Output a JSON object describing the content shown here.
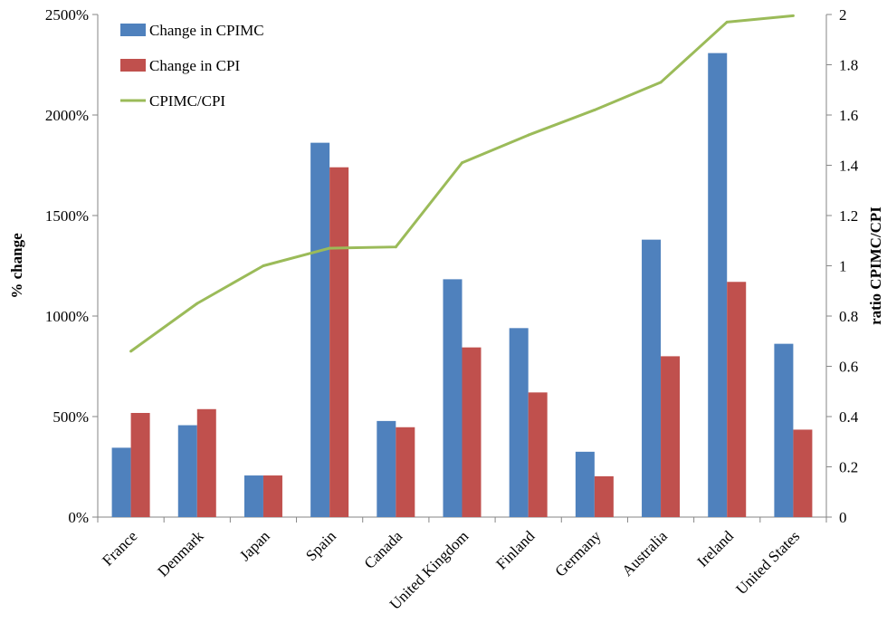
{
  "chart_data": {
    "type": "bar",
    "categories": [
      "France",
      "Denmark",
      "Japan",
      "Spain",
      "Canada",
      "United Kingdom",
      "Finland",
      "Germany",
      "Australia",
      "Ireland",
      "United States"
    ],
    "series": [
      {
        "name": "Change in CPIMC",
        "kind": "bar",
        "axis": "left",
        "color": "#4f81bd",
        "values": [
          345,
          457,
          207,
          1862,
          478,
          1183,
          940,
          325,
          1380,
          2308,
          862
        ]
      },
      {
        "name": "Change in CPI",
        "kind": "bar",
        "axis": "left",
        "color": "#c0504d",
        "values": [
          518,
          537,
          207,
          1740,
          447,
          844,
          620,
          203,
          800,
          1170,
          435
        ]
      },
      {
        "name": "CPIMC/CPI",
        "kind": "line",
        "axis": "right",
        "color": "#9bbb59",
        "values": [
          0.66,
          0.85,
          1.0,
          1.07,
          1.075,
          1.41,
          1.52,
          1.62,
          1.73,
          1.97,
          1.995
        ]
      }
    ],
    "ylabel": "% change",
    "y2label": "ratio CPIMC/CPI",
    "ylim": [
      0,
      2500
    ],
    "y2lim": [
      0,
      2
    ],
    "yticks": [
      "0%",
      "500%",
      "1000%",
      "1500%",
      "2000%",
      "2500%"
    ],
    "y2ticks": [
      "0",
      "0.2",
      "0.4",
      "0.6",
      "0.8",
      "1",
      "1.2",
      "1.4",
      "1.6",
      "1.8",
      "2"
    ],
    "legend_position": "top-left",
    "grid": false
  }
}
